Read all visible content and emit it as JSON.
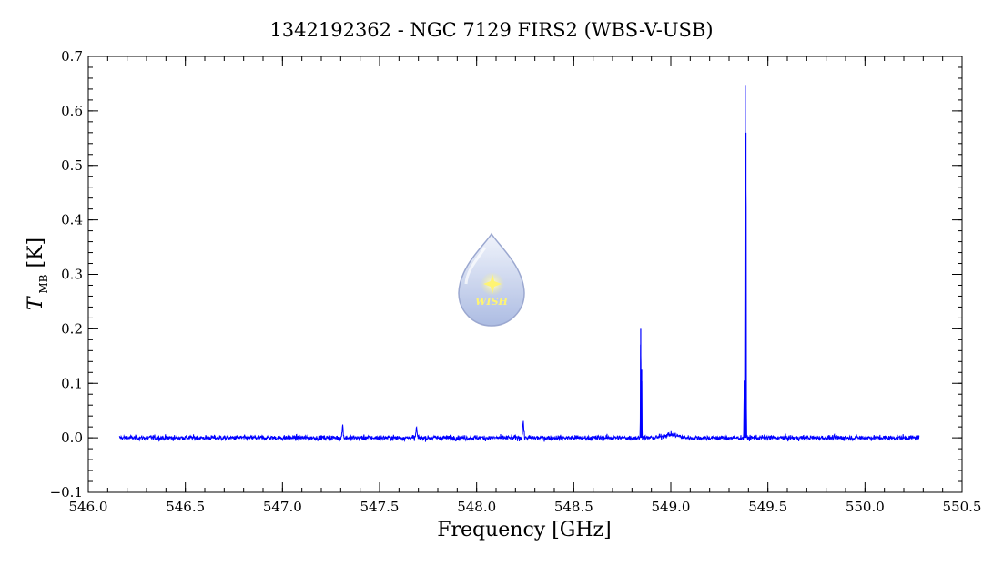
{
  "chart_data": {
    "type": "line",
    "title": "1342192362 - NGC 7129 FIRS2 (WBS-V-USB)",
    "xlabel": "Frequency [GHz]",
    "ylabel_main": "T",
    "ylabel_sub": "MB",
    "ylabel_unit": "[K]",
    "xlim": [
      546.0,
      550.5
    ],
    "ylim": [
      -0.1,
      0.7
    ],
    "x_major_ticks": [
      546.0,
      546.5,
      547.0,
      547.5,
      548.0,
      548.5,
      549.0,
      549.5,
      550.0,
      550.5
    ],
    "x_tick_labels": [
      "546.0",
      "546.5",
      "547.0",
      "547.5",
      "548.0",
      "548.5",
      "549.0",
      "549.5",
      "550.0",
      "550.5"
    ],
    "y_major_ticks": [
      -0.1,
      0.0,
      0.1,
      0.2,
      0.3,
      0.4,
      0.5,
      0.6,
      0.7
    ],
    "y_tick_labels": [
      "−0.1",
      "0.0",
      "0.1",
      "0.2",
      "0.3",
      "0.4",
      "0.5",
      "0.6",
      "0.7"
    ],
    "x_minor_step": 0.1,
    "y_minor_step": 0.02,
    "grid": false,
    "series_color": "#0000ff",
    "spectrum": {
      "x_start": 546.16,
      "x_end": 550.28,
      "baseline": 0.0,
      "noise_rms": 0.004,
      "features": [
        {
          "x": 547.31,
          "peak": 0.022
        },
        {
          "x": 547.69,
          "peak": 0.018
        },
        {
          "x": 548.24,
          "peak": 0.03
        },
        {
          "x": 548.845,
          "peak": 0.2
        },
        {
          "x": 548.85,
          "peak": 0.125
        },
        {
          "x": 549.383,
          "peak": 0.648
        },
        {
          "x": 549.387,
          "peak": 0.56
        },
        {
          "x": 549.378,
          "peak": 0.105
        }
      ]
    }
  },
  "watermark": {
    "text": "WISH",
    "colors": {
      "drop_top": "#eef2fb",
      "drop_bottom": "#9fb1de",
      "star": "#fff35a"
    }
  }
}
